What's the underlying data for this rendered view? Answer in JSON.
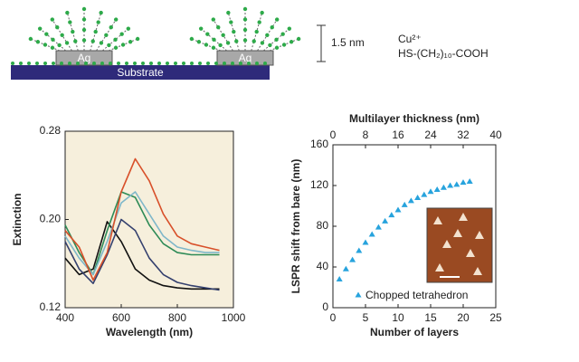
{
  "schematic": {
    "blocks": [
      "Ag",
      "Ag"
    ],
    "substrate": "Substrate",
    "height_label": "1.5 nm",
    "ion": "Cu²⁺",
    "molecule": "HS-(CH₂)₁₀-COOH"
  },
  "chart_data": [
    {
      "type": "line",
      "xlabel": "Wavelength (nm)",
      "ylabel": "Extinction",
      "background": "#f6efdc",
      "x": [
        400,
        450,
        500,
        550,
        600,
        650,
        700,
        750,
        800,
        850,
        900,
        950
      ],
      "xlim": [
        400,
        1000
      ],
      "xticks": [
        400,
        600,
        800,
        1000
      ],
      "ylim": [
        0.12,
        0.28
      ],
      "yticks": [
        0.12,
        {
          "value": 0.2,
          "label": "0.20"
        },
        0.28
      ],
      "series": [
        {
          "color": "#111111",
          "values": [
            0.165,
            0.15,
            0.155,
            0.198,
            0.18,
            0.155,
            0.145,
            0.14,
            0.138,
            0.137,
            0.137,
            0.137
          ]
        },
        {
          "color": "#34406e",
          "values": [
            0.18,
            0.155,
            0.142,
            0.168,
            0.2,
            0.19,
            0.165,
            0.15,
            0.143,
            0.14,
            0.138,
            0.136
          ]
        },
        {
          "color": "#2e8b57",
          "values": [
            0.195,
            0.17,
            0.15,
            0.19,
            0.225,
            0.22,
            0.195,
            0.178,
            0.17,
            0.168,
            0.168,
            0.168
          ]
        },
        {
          "color": "#7fb7c9",
          "values": [
            0.185,
            0.165,
            0.15,
            0.18,
            0.215,
            0.225,
            0.205,
            0.185,
            0.175,
            0.172,
            0.17,
            0.17
          ]
        },
        {
          "color": "#d8502a",
          "values": [
            0.19,
            0.175,
            0.145,
            0.17,
            0.225,
            0.255,
            0.235,
            0.205,
            0.185,
            0.178,
            0.175,
            0.172
          ]
        }
      ]
    },
    {
      "type": "scatter",
      "xlabel": "Number of layers",
      "ylabel": "LSPR shift from bare (nm)",
      "x2label": "Multilayer thickness (nm)",
      "color": "#27a3dd",
      "x": [
        1,
        2,
        3,
        4,
        5,
        6,
        7,
        8,
        9,
        10,
        11,
        12,
        13,
        14,
        15,
        16,
        17,
        18,
        19,
        20,
        21
      ],
      "values": [
        28,
        38,
        47,
        56,
        64,
        72,
        79,
        85,
        91,
        96,
        101,
        105,
        108,
        111,
        114,
        116,
        118,
        120,
        121,
        123,
        124
      ],
      "xlim": [
        0,
        25
      ],
      "xticks": [
        0,
        5,
        10,
        15,
        20,
        25
      ],
      "x2lim": [
        0,
        40
      ],
      "x2ticks": [
        0,
        8,
        16,
        24,
        32,
        40
      ],
      "ylim": [
        0,
        160
      ],
      "yticks": [
        0,
        40,
        80,
        120,
        160
      ],
      "legend": "Chopped tetrahedron",
      "legend_position": "lower right"
    }
  ]
}
